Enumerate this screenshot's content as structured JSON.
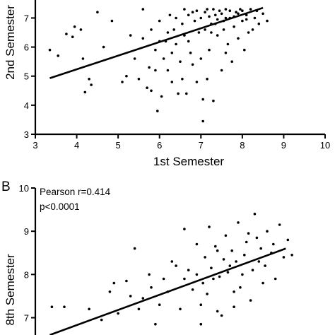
{
  "chart_data": [
    {
      "type": "scatter",
      "panel": "",
      "xlabel": "1st Semester",
      "ylabel": "2nd Semester",
      "xlim": [
        3,
        10
      ],
      "ylim": [
        3,
        7.4
      ],
      "xticks": [
        3,
        4,
        5,
        6,
        7,
        8,
        9,
        10
      ],
      "yticks": [
        3,
        4,
        5,
        6,
        7
      ],
      "grid": false,
      "regression_line": {
        "x": [
          3.35,
          8.5
        ],
        "y": [
          4.93,
          7.35
        ]
      },
      "points": [
        [
          3.35,
          5.9
        ],
        [
          3.55,
          5.7
        ],
        [
          3.75,
          6.45
        ],
        [
          3.9,
          6.35
        ],
        [
          3.95,
          6.7
        ],
        [
          4.1,
          6.6
        ],
        [
          4.15,
          5.6
        ],
        [
          4.3,
          4.9
        ],
        [
          4.35,
          4.7
        ],
        [
          4.2,
          4.45
        ],
        [
          4.5,
          7.2
        ],
        [
          4.65,
          6.0
        ],
        [
          4.85,
          6.9
        ],
        [
          5.1,
          4.8
        ],
        [
          5.2,
          5.0
        ],
        [
          5.3,
          6.4
        ],
        [
          5.4,
          5.6
        ],
        [
          5.5,
          4.9
        ],
        [
          5.6,
          7.3
        ],
        [
          5.7,
          4.6
        ],
        [
          5.8,
          4.5
        ],
        [
          5.9,
          5.9
        ],
        [
          5.95,
          3.8
        ],
        [
          6.0,
          6.9
        ],
        [
          6.05,
          4.3
        ],
        [
          6.15,
          6.2
        ],
        [
          6.2,
          5.2
        ],
        [
          6.25,
          7.1
        ],
        [
          6.3,
          4.8
        ],
        [
          6.35,
          6.6
        ],
        [
          6.4,
          7.0
        ],
        [
          6.45,
          4.4
        ],
        [
          6.5,
          5.5
        ],
        [
          6.55,
          6.8
        ],
        [
          6.6,
          7.3
        ],
        [
          6.65,
          4.4
        ],
        [
          6.7,
          6.2
        ],
        [
          6.75,
          5.8
        ],
        [
          6.8,
          7.2
        ],
        [
          6.85,
          6.9
        ],
        [
          6.9,
          4.8
        ],
        [
          6.95,
          6.5
        ],
        [
          7.05,
          3.45
        ],
        [
          7.05,
          4.2
        ],
        [
          7.1,
          6.6
        ],
        [
          7.15,
          7.3
        ],
        [
          7.2,
          5.9
        ],
        [
          7.25,
          6.8
        ],
        [
          7.3,
          4.15
        ],
        [
          7.35,
          7.1
        ],
        [
          7.4,
          6.4
        ],
        [
          7.45,
          7.25
        ],
        [
          7.5,
          5.2
        ],
        [
          7.55,
          6.9
        ],
        [
          7.6,
          7.3
        ],
        [
          7.65,
          6.1
        ],
        [
          7.7,
          7.0
        ],
        [
          7.75,
          5.5
        ],
        [
          7.8,
          6.7
        ],
        [
          7.85,
          7.2
        ],
        [
          7.9,
          6.3
        ],
        [
          7.95,
          7.3
        ],
        [
          8.0,
          6.9
        ],
        [
          8.05,
          5.9
        ],
        [
          8.1,
          7.1
        ],
        [
          8.15,
          6.5
        ],
        [
          8.2,
          7.3
        ],
        [
          8.25,
          6.6
        ],
        [
          8.3,
          7.0
        ],
        [
          8.35,
          7.25
        ],
        [
          8.4,
          6.8
        ],
        [
          8.5,
          7.15
        ],
        [
          8.6,
          6.9
        ],
        [
          6.7,
          7.1
        ],
        [
          6.9,
          7.25
        ],
        [
          7.0,
          7.0
        ],
        [
          7.1,
          7.2
        ],
        [
          7.2,
          7.05
        ],
        [
          7.3,
          7.3
        ],
        [
          7.4,
          6.95
        ],
        [
          7.5,
          7.15
        ],
        [
          7.6,
          7.0
        ],
        [
          7.7,
          7.25
        ],
        [
          7.8,
          7.05
        ],
        [
          7.9,
          7.15
        ],
        [
          8.0,
          7.25
        ],
        [
          8.1,
          6.95
        ],
        [
          7.35,
          6.8
        ],
        [
          7.55,
          6.6
        ],
        [
          7.25,
          6.5
        ],
        [
          6.6,
          6.4
        ],
        [
          6.4,
          6.1
        ],
        [
          6.2,
          6.5
        ],
        [
          6.0,
          6.2
        ],
        [
          5.8,
          6.6
        ],
        [
          5.6,
          6.3
        ],
        [
          5.9,
          5.2
        ],
        [
          6.1,
          5.6
        ],
        [
          6.3,
          5.8
        ],
        [
          6.8,
          5.4
        ],
        [
          7.0,
          5.6
        ],
        [
          7.6,
          5.8
        ],
        [
          7.15,
          4.9
        ],
        [
          6.55,
          4.9
        ],
        [
          5.75,
          5.3
        ]
      ]
    },
    {
      "type": "scatter",
      "panel": "B",
      "xlabel": "",
      "ylabel": "8th Semester",
      "xlim": [
        3,
        10
      ],
      "ylim": [
        6.6,
        10
      ],
      "yticks": [
        7,
        8,
        9,
        10
      ],
      "grid": false,
      "annotation": [
        "Pearson r=0.414",
        "p<0.0001"
      ],
      "regression_line": {
        "x": [
          3.35,
          9.05
        ],
        "y": [
          6.6,
          8.6
        ]
      },
      "points": [
        [
          3.4,
          7.25
        ],
        [
          3.7,
          7.25
        ],
        [
          4.3,
          7.2
        ],
        [
          4.6,
          6.95
        ],
        [
          4.8,
          7.6
        ],
        [
          5.0,
          7.1
        ],
        [
          5.2,
          7.85
        ],
        [
          5.4,
          8.6
        ],
        [
          5.6,
          7.45
        ],
        [
          5.8,
          7.7
        ],
        [
          5.9,
          6.85
        ],
        [
          6.1,
          7.9
        ],
        [
          6.3,
          8.3
        ],
        [
          6.5,
          7.2
        ],
        [
          6.6,
          9.05
        ],
        [
          6.7,
          8.1
        ],
        [
          6.8,
          7.65
        ],
        [
          6.9,
          8.7
        ],
        [
          7.0,
          7.3
        ],
        [
          7.1,
          8.4
        ],
        [
          7.2,
          9.1
        ],
        [
          7.3,
          7.9
        ],
        [
          7.4,
          8.55
        ],
        [
          7.5,
          7.05
        ],
        [
          7.6,
          8.9
        ],
        [
          7.7,
          8.2
        ],
        [
          7.8,
          7.6
        ],
        [
          7.9,
          9.2
        ],
        [
          8.0,
          8.0
        ],
        [
          8.1,
          8.75
        ],
        [
          8.2,
          7.4
        ],
        [
          8.3,
          9.4
        ],
        [
          8.4,
          8.3
        ],
        [
          8.5,
          7.8
        ],
        [
          8.6,
          9.0
        ],
        [
          8.7,
          8.5
        ],
        [
          8.8,
          7.9
        ],
        [
          8.9,
          9.15
        ],
        [
          9.0,
          8.4
        ],
        [
          9.1,
          8.8
        ],
        [
          9.2,
          8.45
        ],
        [
          6.9,
          8.0
        ],
        [
          7.05,
          7.8
        ],
        [
          7.25,
          8.15
        ],
        [
          7.45,
          7.95
        ],
        [
          7.65,
          8.05
        ],
        [
          7.85,
          8.3
        ],
        [
          8.05,
          8.45
        ],
        [
          8.25,
          8.1
        ],
        [
          8.45,
          8.6
        ],
        [
          7.15,
          7.55
        ],
        [
          7.55,
          8.35
        ],
        [
          7.95,
          7.7
        ],
        [
          8.35,
          8.85
        ],
        [
          6.6,
          7.9
        ],
        [
          6.4,
          8.2
        ],
        [
          6.2,
          7.6
        ],
        [
          6.0,
          7.3
        ],
        [
          5.75,
          8.0
        ],
        [
          5.5,
          7.2
        ],
        [
          5.3,
          7.5
        ],
        [
          4.9,
          7.8
        ],
        [
          7.35,
          8.65
        ],
        [
          7.75,
          8.55
        ],
        [
          8.15,
          8.95
        ],
        [
          8.55,
          8.2
        ],
        [
          8.75,
          8.7
        ],
        [
          7.0,
          6.85
        ],
        [
          7.4,
          7.15
        ],
        [
          7.8,
          7.25
        ]
      ]
    }
  ]
}
